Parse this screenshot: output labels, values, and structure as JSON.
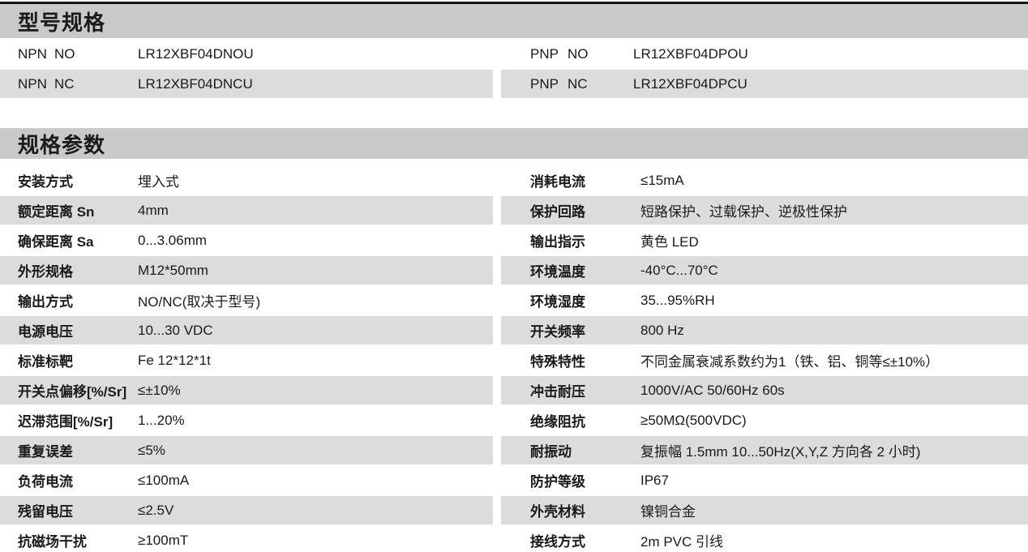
{
  "page": {
    "colors": {
      "page_bg": "#ffffff",
      "top_rule": "#161616",
      "section_header_bg": "#c9c9c9",
      "row_alt_bg": "#dcdcdc",
      "text": "#1a1a1a"
    }
  },
  "model_section": {
    "title": "型号规格",
    "rows": [
      {
        "shaded": false,
        "left": {
          "type": "NPN",
          "state": "NO",
          "model": "LR12XBF04DNOU"
        },
        "right": {
          "type": "PNP",
          "state": "NO",
          "model": "LR12XBF04DPOU"
        }
      },
      {
        "shaded": true,
        "left": {
          "type": "NPN",
          "state": "NC",
          "model": "LR12XBF04DNCU"
        },
        "right": {
          "type": "PNP",
          "state": "NC",
          "model": "LR12XBF04DPCU"
        }
      }
    ]
  },
  "spec_section": {
    "title": "规格参数",
    "rows": [
      {
        "shaded": false,
        "left": {
          "label": "安装方式",
          "value": "埋入式"
        },
        "right": {
          "label": "消耗电流",
          "value": "≤15mA"
        }
      },
      {
        "shaded": true,
        "left": {
          "label": "额定距离 Sn",
          "value": "4mm"
        },
        "right": {
          "label": "保护回路",
          "value": "短路保护、过载保护、逆极性保护"
        }
      },
      {
        "shaded": false,
        "left": {
          "label": "确保距离 Sa",
          "value": "0...3.06mm"
        },
        "right": {
          "label": "输出指示",
          "value": "黄色 LED"
        }
      },
      {
        "shaded": true,
        "left": {
          "label": "外形规格",
          "value": "M12*50mm"
        },
        "right": {
          "label": "环境温度",
          "value": "-40°C...70°C"
        }
      },
      {
        "shaded": false,
        "left": {
          "label": "输出方式",
          "value": "NO/NC(取决于型号)"
        },
        "right": {
          "label": "环境湿度",
          "value": "35...95%RH"
        }
      },
      {
        "shaded": true,
        "left": {
          "label": "电源电压",
          "value": "10...30 VDC"
        },
        "right": {
          "label": "开关频率",
          "value": "800 Hz"
        }
      },
      {
        "shaded": false,
        "left": {
          "label": "标准标靶",
          "value": "Fe 12*12*1t"
        },
        "right": {
          "label": "特殊特性",
          "value": "不同金属衰减系数约为1（铁、铝、铜等≤±10%）"
        }
      },
      {
        "shaded": true,
        "left": {
          "label": "开关点偏移[%/Sr]",
          "value": "≤±10%"
        },
        "right": {
          "label": "冲击耐压",
          "value": "1000V/AC 50/60Hz 60s"
        }
      },
      {
        "shaded": false,
        "left": {
          "label": "迟滞范围[%/Sr]",
          "value": "1...20%"
        },
        "right": {
          "label": "绝缘阻抗",
          "value": "≥50MΩ(500VDC)"
        }
      },
      {
        "shaded": true,
        "left": {
          "label": "重复误差",
          "value": "≤5%"
        },
        "right": {
          "label": "耐振动",
          "value": "复振幅 1.5mm 10...50Hz(X,Y,Z 方向各 2 小时)"
        }
      },
      {
        "shaded": false,
        "left": {
          "label": "负荷电流",
          "value": "≤100mA"
        },
        "right": {
          "label": "防护等级",
          "value": "IP67"
        }
      },
      {
        "shaded": true,
        "left": {
          "label": "残留电压",
          "value": "≤2.5V"
        },
        "right": {
          "label": "外壳材料",
          "value": "镍铜合金"
        }
      },
      {
        "shaded": false,
        "left": {
          "label": "抗磁场干扰",
          "value": "≥100mT"
        },
        "right": {
          "label": "接线方式",
          "value": "2m PVC 引线"
        }
      }
    ]
  }
}
